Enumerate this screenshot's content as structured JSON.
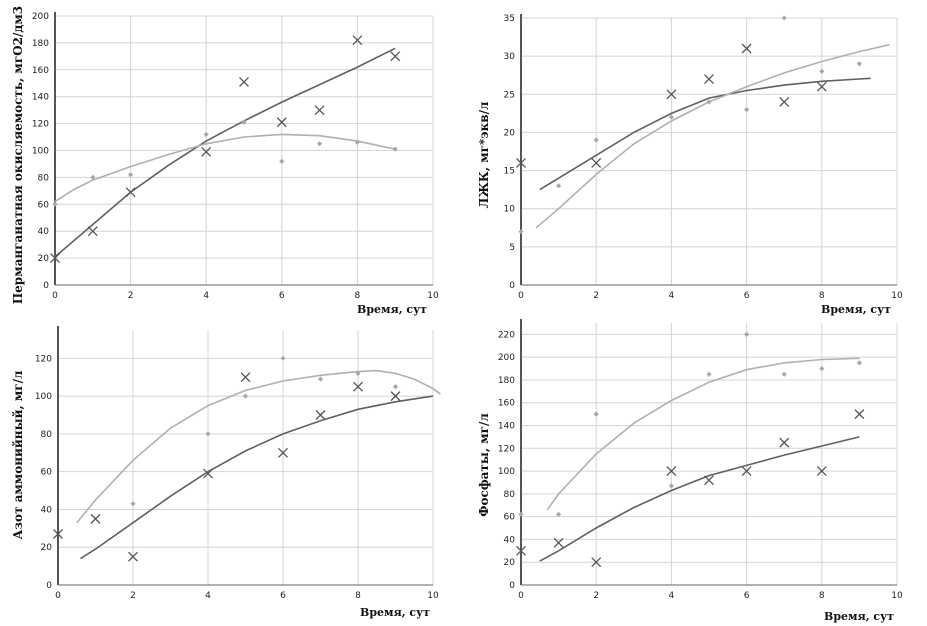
{
  "chart_data": [
    {
      "type": "scatter",
      "ylabel": "Перманганатная окисляемость, мгО2/дм3",
      "xlabel": "Время, сут",
      "xlim": [
        0,
        10
      ],
      "xticks": [
        0,
        2,
        4,
        6,
        8,
        10
      ],
      "ylim": [
        0,
        200
      ],
      "yticks": [
        0,
        20,
        40,
        60,
        80,
        100,
        120,
        140,
        160,
        180,
        200
      ],
      "series": [
        {
          "name": "cross",
          "marker": "x",
          "color": "#555555",
          "x": [
            0,
            1,
            2,
            4,
            5,
            6,
            7,
            8,
            9
          ],
          "y": [
            20,
            40,
            69,
            99,
            151,
            121,
            130,
            182,
            170
          ]
        },
        {
          "name": "diamond",
          "marker": "diamond",
          "color": "#a8a8a8",
          "x": [
            0,
            1,
            2,
            4,
            5,
            6,
            7,
            8,
            9
          ],
          "y": [
            60,
            80,
            82,
            112,
            121,
            92,
            105,
            106,
            101
          ]
        }
      ],
      "trendlines": [
        {
          "color": "#606060",
          "x": [
            0,
            1,
            2,
            3,
            4,
            5,
            6,
            7,
            8,
            9
          ],
          "y": [
            21,
            45,
            69,
            89,
            107,
            122,
            136,
            149,
            162,
            176
          ]
        },
        {
          "color": "#b0b0b0",
          "x": [
            0,
            0.5,
            1,
            2,
            3,
            4,
            5,
            6,
            7,
            8,
            9
          ],
          "y": [
            62,
            71,
            78,
            88,
            97,
            105,
            110,
            112,
            111,
            107,
            101
          ]
        }
      ]
    },
    {
      "type": "scatter",
      "ylabel": "ЛЖК, мг*экв/л",
      "xlabel": "Время, сут",
      "xlim": [
        0,
        10
      ],
      "xticks": [
        0,
        2,
        4,
        6,
        8,
        10
      ],
      "ylim": [
        0,
        35
      ],
      "yticks": [
        0,
        5,
        10,
        15,
        20,
        25,
        30,
        35
      ],
      "series": [
        {
          "name": "cross",
          "marker": "x",
          "color": "#555555",
          "x": [
            0,
            2,
            4,
            5,
            6,
            7,
            8
          ],
          "y": [
            16,
            16,
            25,
            27,
            31,
            24,
            26
          ]
        },
        {
          "name": "diamond",
          "marker": "diamond",
          "color": "#a8a8a8",
          "x": [
            0,
            1,
            2,
            4,
            5,
            6,
            7,
            8,
            9
          ],
          "y": [
            7,
            13,
            19,
            22,
            24,
            23,
            35,
            28,
            29
          ]
        }
      ],
      "trendlines": [
        {
          "color": "#606060",
          "x": [
            0.5,
            1,
            2,
            3,
            4,
            5,
            6,
            7,
            8,
            9,
            9.3
          ],
          "y": [
            12.5,
            14,
            17,
            20,
            22.5,
            24.5,
            25.5,
            26.2,
            26.7,
            27,
            27.1
          ]
        },
        {
          "color": "#b0b0b0",
          "x": [
            0.4,
            1,
            2,
            3,
            4,
            5,
            6,
            7,
            8,
            9,
            9.8
          ],
          "y": [
            7.5,
            10,
            14.5,
            18.5,
            21.5,
            24,
            26,
            27.8,
            29.3,
            30.6,
            31.5
          ]
        }
      ]
    },
    {
      "type": "scatter",
      "ylabel": "Азот аммонийный, мг/л",
      "xlabel": "Время, сут",
      "xlim": [
        0,
        10
      ],
      "xticks": [
        0,
        2,
        4,
        6,
        8,
        10
      ],
      "ylim": [
        0,
        135
      ],
      "yticks": [
        0,
        20,
        40,
        60,
        80,
        100,
        120
      ],
      "series": [
        {
          "name": "cross",
          "marker": "x",
          "color": "#555555",
          "x": [
            0,
            1,
            2,
            4,
            5,
            6,
            7,
            8,
            9
          ],
          "y": [
            27,
            35,
            15,
            59,
            110,
            70,
            90,
            105,
            100
          ]
        },
        {
          "name": "diamond",
          "marker": "diamond",
          "color": "#a8a8a8",
          "x": [
            2,
            4,
            5,
            6,
            7,
            8,
            9
          ],
          "y": [
            43,
            80,
            100,
            120,
            109,
            112,
            105
          ]
        }
      ],
      "trendlines": [
        {
          "color": "#606060",
          "x": [
            0.6,
            1,
            2,
            3,
            4,
            5,
            6,
            7,
            8,
            9,
            10
          ],
          "y": [
            14,
            19,
            33,
            47,
            60,
            71,
            80,
            87,
            93,
            97,
            100
          ]
        },
        {
          "color": "#b0b0b0",
          "x": [
            0.5,
            1,
            2,
            3,
            4,
            5,
            6,
            7,
            8,
            8.5,
            9,
            9.5,
            10,
            10.2
          ],
          "y": [
            33,
            45,
            66,
            83,
            95,
            103,
            108,
            111,
            113,
            113.5,
            112,
            109,
            104,
            101
          ]
        }
      ]
    },
    {
      "type": "scatter",
      "ylabel": "Фосфаты, мг/л",
      "xlabel": "Время, сут",
      "xlim": [
        0,
        10
      ],
      "xticks": [
        0,
        2,
        4,
        6,
        8,
        10
      ],
      "ylim": [
        0,
        230
      ],
      "yticks": [
        0,
        20,
        40,
        60,
        80,
        100,
        120,
        140,
        160,
        180,
        200,
        220
      ],
      "series": [
        {
          "name": "cross",
          "marker": "x",
          "color": "#555555",
          "x": [
            0,
            1,
            2,
            4,
            5,
            6,
            7,
            8,
            9
          ],
          "y": [
            30,
            37,
            20,
            100,
            92,
            100,
            125,
            100,
            150
          ]
        },
        {
          "name": "diamond",
          "marker": "diamond",
          "color": "#a8a8a8",
          "x": [
            0,
            1,
            2,
            4,
            5,
            6,
            7,
            8,
            9
          ],
          "y": [
            62,
            62,
            150,
            87,
            185,
            220,
            185,
            190,
            195
          ]
        }
      ],
      "trendlines": [
        {
          "color": "#606060",
          "x": [
            0.5,
            1,
            2,
            3,
            4,
            5,
            6,
            7,
            8,
            9
          ],
          "y": [
            21,
            30,
            50,
            68,
            83,
            96,
            105,
            114,
            122,
            130
          ]
        },
        {
          "color": "#b0b0b0",
          "x": [
            0.7,
            1,
            2,
            3,
            4,
            5,
            6,
            7,
            8,
            9
          ],
          "y": [
            66,
            80,
            115,
            142,
            162,
            178,
            189,
            195,
            198,
            199
          ]
        }
      ]
    }
  ]
}
